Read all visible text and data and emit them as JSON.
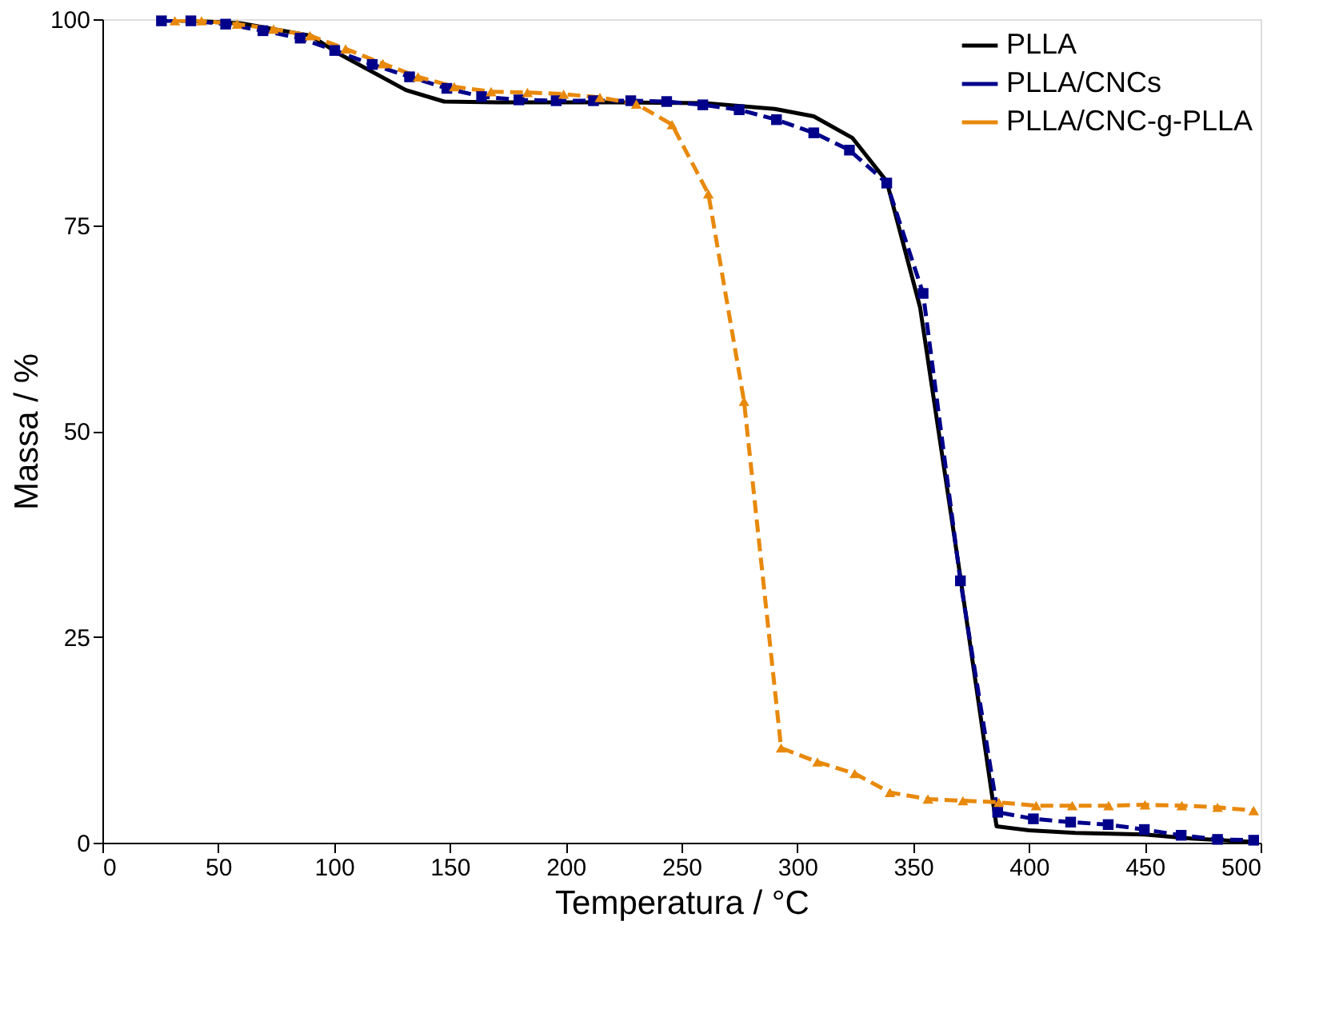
{
  "chart_data": {
    "type": "line",
    "xlabel": "Temperatura / °C",
    "ylabel": "Massa / %",
    "xlim": [
      0,
      500
    ],
    "ylim": [
      0,
      100
    ],
    "xticks": [
      0,
      50,
      100,
      150,
      200,
      250,
      300,
      350,
      400,
      450,
      500
    ],
    "yticks": [
      0,
      25,
      50,
      75,
      100
    ],
    "grid": false,
    "legend": "top right",
    "series": [
      {
        "name": "PLLA",
        "color": "#000000",
        "line_style": "solid",
        "marker": "none",
        "x": [
          25,
          60,
          90,
          101.5,
          131,
          147.5,
          170,
          220,
          260,
          290.3,
          307.1,
          323.7,
          338.6,
          353,
          370,
          386,
          400,
          420,
          450,
          470,
          497
        ],
        "values": [
          100,
          99.5,
          98,
          95.9,
          91.4,
          90.0,
          89.9,
          89.9,
          89.8,
          89.1,
          88.2,
          85.6,
          80.3,
          65,
          33,
          2,
          1.5,
          1.2,
          1.0,
          0.5,
          0.1
        ]
      },
      {
        "name": "PLLA/CNCs",
        "color": "#00008b",
        "line_style": "dashed",
        "marker": "square",
        "x": [
          25.5,
          38.2,
          53.2,
          69.3,
          85.4,
          100.3,
          116.5,
          132.6,
          148.7,
          163.7,
          179.8,
          195.9,
          212,
          228.1,
          243.6,
          259.2,
          274.9,
          291,
          307.1,
          322.5,
          338.6,
          354.3,
          370.4,
          386.5,
          401.9,
          418,
          434.2,
          449.8,
          465.7,
          481.4,
          497
        ],
        "values": [
          99.8,
          99.8,
          99.4,
          98.6,
          97.7,
          96.2,
          94.5,
          93,
          91.6,
          90.6,
          90.2,
          90.1,
          90.1,
          90.1,
          90.0,
          89.6,
          89.0,
          87.8,
          86.2,
          84.1,
          80.1,
          66.7,
          31.8,
          3.7,
          2.9,
          2.5,
          2.2,
          1.6,
          0.9,
          0.4,
          0.3
        ]
      },
      {
        "name": "PLLA/CNC-g-PLLA",
        "color": "#e8890c",
        "line_style": "dashed",
        "marker": "triangle",
        "x": [
          31.3,
          42.8,
          58.2,
          73.9,
          89.6,
          105,
          121.1,
          136.3,
          151.9,
          167.8,
          183.5,
          199.1,
          214.8,
          230.5,
          245.9,
          261.6,
          277,
          293,
          308.7,
          324.8,
          340,
          356.4,
          371.5,
          387,
          403.1,
          418.7,
          434.4,
          450.1,
          466,
          481.4,
          497
        ],
        "values": [
          99.8,
          99.8,
          99.4,
          98.8,
          98,
          96.4,
          94.6,
          93,
          91.8,
          91.2,
          91.1,
          90.9,
          90.5,
          89.7,
          87.2,
          78.8,
          53.6,
          11.5,
          9.8,
          8.4,
          6.1,
          5.3,
          5.1,
          4.9,
          4.5,
          4.5,
          4.5,
          4.6,
          4.5,
          4.3,
          3.9
        ]
      }
    ]
  }
}
